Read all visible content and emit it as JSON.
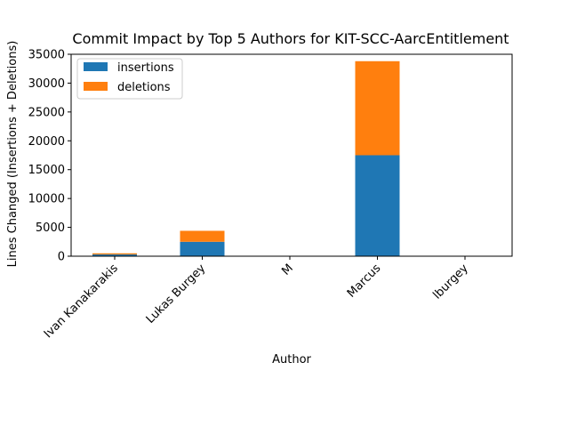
{
  "chart_data": {
    "type": "bar",
    "stacked": true,
    "title": "Commit Impact by Top 5 Authors for KIT-SCC-AarcEntitlement",
    "xlabel": "Author",
    "ylabel": "Lines Changed (Insertions + Deletions)",
    "categories": [
      "Ivan Kanakarakis",
      "Lukas Burgey",
      "M",
      "Marcus",
      "lburgey"
    ],
    "series": [
      {
        "name": "insertions",
        "color": "#1f77b4",
        "values": [
          300,
          2500,
          0,
          17500,
          0
        ]
      },
      {
        "name": "deletions",
        "color": "#ff7f0e",
        "values": [
          200,
          1900,
          0,
          16300,
          0
        ]
      }
    ],
    "ylim": [
      0,
      35000
    ],
    "yticks": [
      0,
      5000,
      10000,
      15000,
      20000,
      25000,
      30000,
      35000
    ],
    "ytick_labels": [
      "0",
      "5000",
      "10000",
      "15000",
      "20000",
      "25000",
      "30000",
      "35000"
    ],
    "grid": false,
    "legend_position": "top-left"
  }
}
